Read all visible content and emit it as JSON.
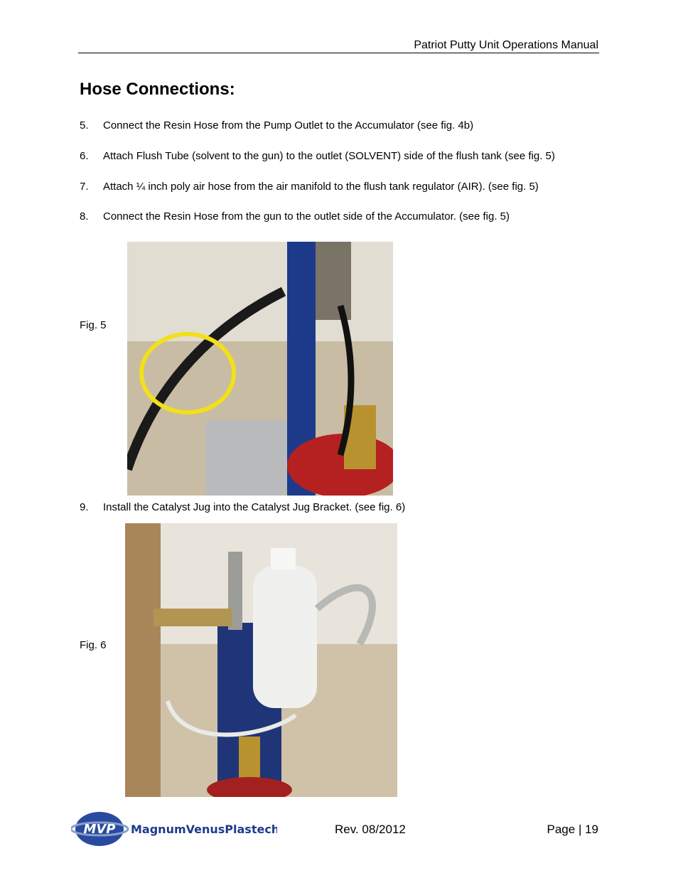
{
  "header": {
    "title": "Patriot Putty Unit Operations Manual"
  },
  "heading": "Hose Connections:",
  "steps": [
    {
      "number": "5.",
      "text": "Connect the Resin Hose from the Pump Outlet to the Accumulator (see fig. 4b)"
    },
    {
      "number": "6.",
      "text": "Attach Flush Tube (solvent to the gun) to the outlet (SOLVENT) side of the flush tank (see fig. 5)"
    },
    {
      "number": "7.",
      "text": "Attach ¼ inch poly air hose from the air manifold to the flush tank regulator (AIR). (see fig. 5)"
    },
    {
      "number": "8.",
      "text": "Connect the Resin Hose from the gun to the outlet side of the Accumulator. (see fig. 5)"
    },
    {
      "number": "9.",
      "text": "Install the Catalyst Jug into the Catalyst Jug Bracket. (see fig. 6)"
    }
  ],
  "figures": [
    {
      "label": "Fig. 5"
    },
    {
      "label": "Fig. 6"
    }
  ],
  "footer": {
    "logo_mark": "MVP",
    "logo_text": "MagnumVenusPlastech",
    "revision": "Rev. 08/2012",
    "page": "Page | 19"
  }
}
